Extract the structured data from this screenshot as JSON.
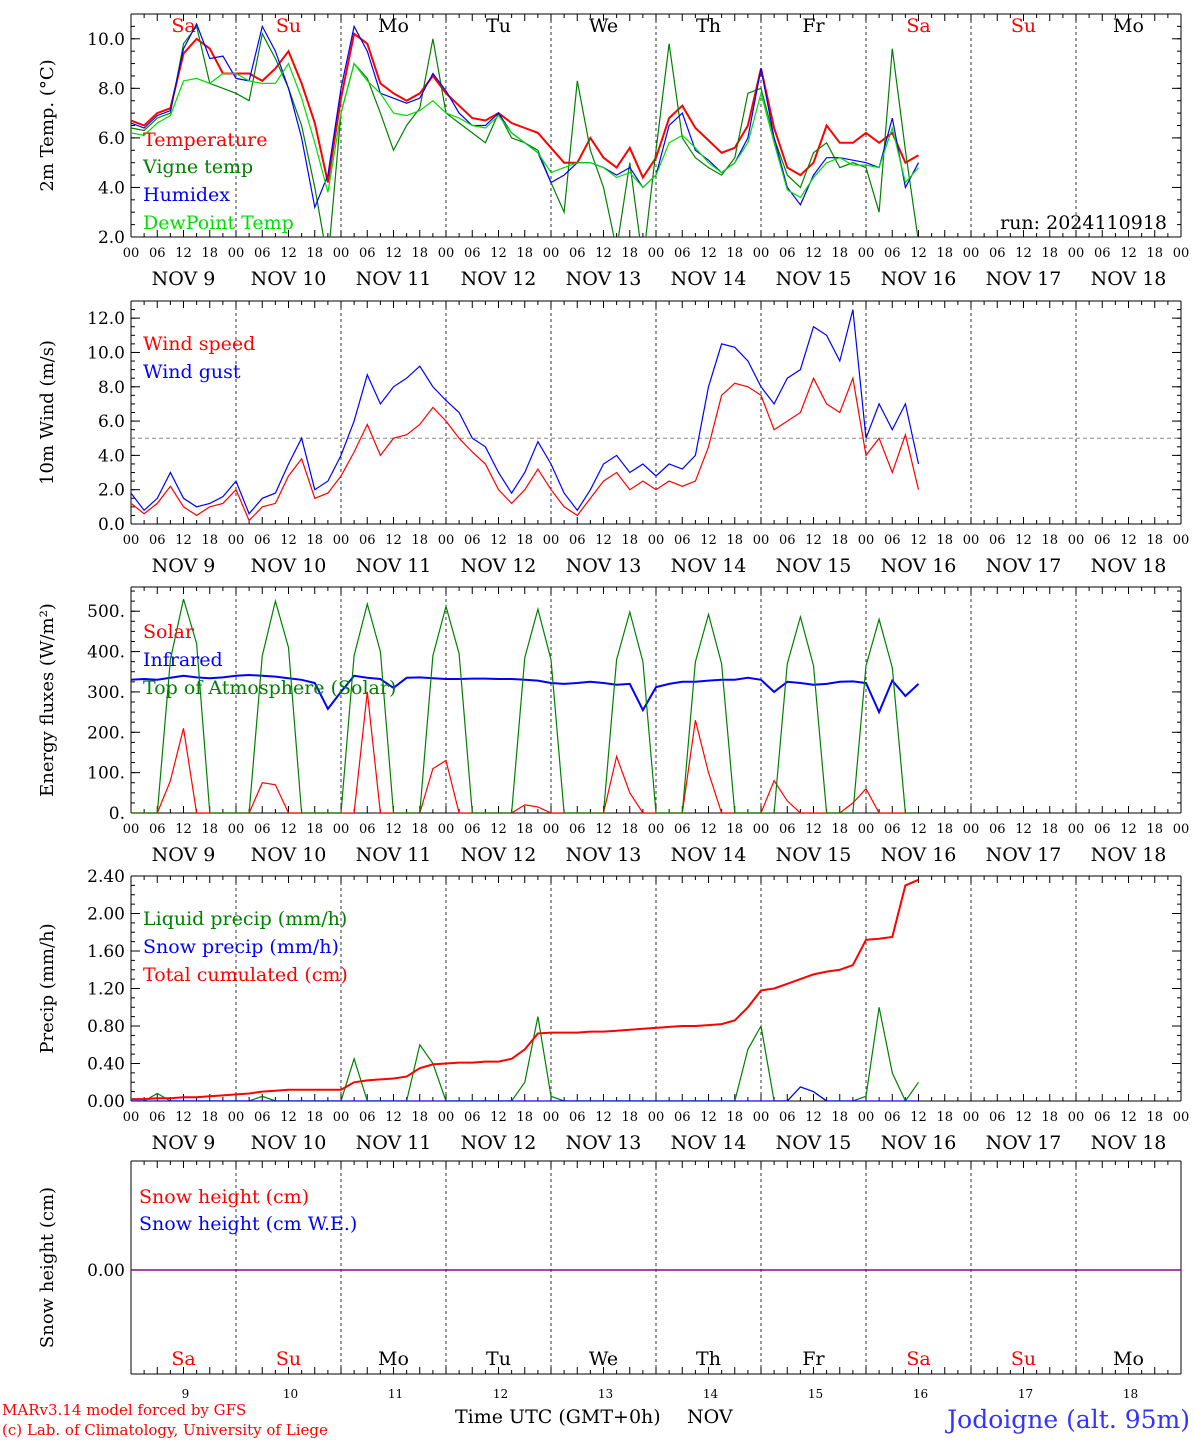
{
  "run_label": "run: 2024110918",
  "x_axis_title": "Time UTC (GMT+0h)",
  "month_label": "NOV",
  "credits": [
    "MARv3.14 model forced by GFS",
    "(c) Lab. of Climatology, University of Liege"
  ],
  "location": "Jodoigne (alt. 95m)",
  "hour_ticks": [
    "00",
    "06",
    "12",
    "18"
  ],
  "end_tick": "00",
  "day_labels": [
    "NOV  9",
    "NOV 10",
    "NOV 11",
    "NOV 12",
    "NOV 13",
    "NOV 14",
    "NOV 15",
    "NOV 16",
    "NOV 17",
    "NOV 18"
  ],
  "day_numbers": [
    "9",
    "10",
    "11",
    "12",
    "13",
    "14",
    "15",
    "16",
    "17",
    "18"
  ],
  "weekdays": [
    "Sa",
    "Su",
    "Mo",
    "Tu",
    "We",
    "Th",
    "Fr",
    "Sa",
    "Su",
    "Mo"
  ],
  "weekend_flags": [
    true,
    true,
    false,
    false,
    false,
    false,
    false,
    true,
    true,
    false
  ],
  "colors": {
    "red": "#ff0000",
    "green": "#008000",
    "blue": "#0000ff",
    "lightgreen": "#00dd00",
    "purple": "#7f007f",
    "location": "#3333ff",
    "weekday": "#000000",
    "weekend": "#ff0000"
  },
  "chart_data": [
    {
      "type": "line",
      "ylabel": "2m Temp. (°C)",
      "ylim": [
        2,
        11
      ],
      "yticks": [
        "2.0",
        "4.0",
        "6.0",
        "8.0",
        "10.0"
      ],
      "x_unit": "hours since Nov 9 00 UTC (3-hourly)",
      "x_start": 0,
      "x_step": 3,
      "series": [
        {
          "name": "Temperature",
          "color": "red",
          "values": [
            6.7,
            6.5,
            7.0,
            7.2,
            9.4,
            10.0,
            9.6,
            8.6,
            8.6,
            8.6,
            8.3,
            8.8,
            9.5,
            8.2,
            6.6,
            4.2,
            7.6,
            10.2,
            9.8,
            8.2,
            7.8,
            7.5,
            7.8,
            8.5,
            7.8,
            7.3,
            6.8,
            6.7,
            7.0,
            6.6,
            6.4,
            6.2,
            5.6,
            5.0,
            5.0,
            6.0,
            5.2,
            4.8,
            5.6,
            4.4,
            5.2,
            6.8,
            7.3,
            6.4,
            5.9,
            5.4,
            5.6,
            6.5,
            8.8,
            6.4,
            4.8,
            4.5,
            5.0,
            6.5,
            5.8,
            5.8,
            6.2,
            5.8,
            6.2,
            5.0,
            5.3
          ]
        },
        {
          "name": "Vigne temp",
          "color": "green",
          "values": [
            6.4,
            6.3,
            6.8,
            7.0,
            9.8,
            10.5,
            8.2,
            8.0,
            7.8,
            7.5,
            10.2,
            9.2,
            8.0,
            6.5,
            4.0,
            1.0,
            7.0,
            9.0,
            8.4,
            7.0,
            5.5,
            6.5,
            7.2,
            10.0,
            7.0,
            6.6,
            6.2,
            5.8,
            7.0,
            6.0,
            5.8,
            5.5,
            4.2,
            3.0,
            8.3,
            5.5,
            4.0,
            1.5,
            5.0,
            1.0,
            5.5,
            9.8,
            6.0,
            5.2,
            4.8,
            4.5,
            5.2,
            7.8,
            8.0,
            6.0,
            4.5,
            4.0,
            5.4,
            5.8,
            4.8,
            5.0,
            4.8,
            3.0,
            9.6,
            5.5,
            1.8
          ]
        },
        {
          "name": "Humidex",
          "color": "blue",
          "values": [
            6.6,
            6.4,
            6.9,
            7.1,
            9.6,
            10.6,
            9.2,
            9.3,
            8.4,
            8.3,
            10.5,
            9.5,
            8.0,
            6.0,
            3.2,
            4.5,
            8.0,
            10.5,
            9.5,
            7.8,
            7.6,
            7.4,
            7.6,
            8.6,
            7.9,
            7.0,
            6.5,
            6.5,
            7.0,
            6.2,
            5.8,
            5.4,
            4.2,
            4.5,
            5.0,
            5.0,
            4.8,
            4.5,
            4.8,
            4.0,
            4.5,
            6.5,
            7.0,
            5.5,
            5.1,
            4.6,
            5.0,
            6.0,
            8.8,
            6.0,
            4.0,
            3.3,
            4.5,
            5.2,
            5.2,
            5.1,
            5.0,
            4.8,
            6.8,
            4.0,
            5.0
          ]
        },
        {
          "name": "DewPoint Temp",
          "color": "lightgreen",
          "values": [
            6.2,
            6.1,
            6.6,
            6.9,
            8.3,
            8.4,
            8.2,
            8.6,
            8.6,
            8.3,
            8.2,
            8.2,
            9.0,
            7.6,
            5.8,
            3.8,
            7.0,
            9.0,
            8.3,
            7.8,
            7.0,
            6.9,
            7.1,
            7.5,
            7.0,
            6.8,
            6.5,
            6.4,
            6.9,
            6.2,
            5.8,
            5.4,
            4.6,
            4.8,
            5.0,
            5.0,
            4.8,
            4.4,
            4.6,
            4.0,
            4.5,
            5.8,
            6.1,
            5.6,
            5.0,
            4.6,
            5.0,
            5.8,
            7.8,
            5.8,
            3.9,
            3.6,
            4.4,
            5.0,
            5.2,
            4.9,
            4.9,
            4.8,
            6.4,
            4.2,
            4.8
          ]
        }
      ]
    },
    {
      "type": "line",
      "ylabel": "10m Wind (m/s)",
      "ylim": [
        0,
        13
      ],
      "yticks": [
        "0.0",
        "2.0",
        "4.0",
        "6.0",
        "8.0",
        "10.0",
        "12.0"
      ],
      "reference_line": 5,
      "x_unit": "hours since Nov 9 00 UTC (3-hourly)",
      "x_start": 0,
      "x_step": 3,
      "series": [
        {
          "name": "Wind speed",
          "color": "red",
          "values": [
            1.2,
            0.6,
            1.2,
            2.2,
            1.0,
            0.5,
            1.0,
            1.2,
            2.0,
            0.2,
            1.0,
            1.2,
            2.8,
            3.8,
            1.5,
            1.8,
            2.8,
            4.2,
            5.8,
            4.0,
            5.0,
            5.2,
            5.8,
            6.8,
            6.0,
            5.0,
            4.2,
            3.5,
            2.0,
            1.2,
            2.0,
            3.2,
            2.0,
            1.0,
            0.5,
            1.5,
            2.5,
            3.0,
            2.0,
            2.5,
            2.0,
            2.5,
            2.2,
            2.5,
            4.5,
            7.5,
            8.2,
            8.0,
            7.5,
            5.5,
            6.0,
            6.5,
            8.5,
            7.0,
            6.5,
            8.5,
            4.0,
            5.0,
            3.0,
            5.2,
            2.0
          ]
        },
        {
          "name": "Wind gust",
          "color": "blue",
          "values": [
            1.8,
            0.8,
            1.5,
            3.0,
            1.5,
            1.0,
            1.2,
            1.6,
            2.5,
            0.6,
            1.5,
            1.8,
            3.5,
            5.0,
            2.0,
            2.5,
            4.0,
            6.0,
            8.7,
            7.0,
            8.0,
            8.5,
            9.2,
            8.0,
            7.2,
            6.5,
            5.0,
            4.5,
            3.0,
            1.8,
            3.0,
            4.8,
            3.5,
            1.8,
            0.8,
            2.0,
            3.5,
            4.0,
            3.0,
            3.5,
            2.8,
            3.5,
            3.2,
            4.0,
            8.0,
            10.5,
            10.3,
            9.5,
            8.0,
            7.0,
            8.5,
            9.0,
            11.5,
            11.0,
            9.5,
            12.5,
            5.0,
            7.0,
            5.5,
            7.0,
            3.5
          ]
        }
      ]
    },
    {
      "type": "line",
      "ylabel": "Energy fluxes (W/m²)",
      "ylim": [
        0,
        560
      ],
      "yticks": [
        "0.",
        "100.",
        "200.",
        "300.",
        "400.",
        "500."
      ],
      "x_unit": "hours since Nov 9 00 UTC (3-hourly)",
      "x_start": 0,
      "x_step": 3,
      "series": [
        {
          "name": "Solar",
          "color": "red",
          "values": [
            0,
            0,
            0,
            80,
            210,
            0,
            0,
            0,
            0,
            0,
            75,
            70,
            0,
            0,
            0,
            0,
            0,
            0,
            300,
            0,
            0,
            0,
            0,
            110,
            130,
            0,
            0,
            0,
            0,
            0,
            20,
            15,
            0,
            0,
            0,
            0,
            0,
            140,
            50,
            0,
            0,
            0,
            0,
            230,
            100,
            0,
            0,
            0,
            0,
            80,
            30,
            0,
            0,
            0,
            0,
            25,
            60,
            0,
            0,
            0,
            0
          ]
        },
        {
          "name": "Infrared",
          "color": "blue",
          "values": [
            330,
            332,
            330,
            335,
            340,
            336,
            334,
            336,
            340,
            342,
            340,
            338,
            334,
            330,
            322,
            258,
            300,
            340,
            335,
            332,
            310,
            335,
            336,
            334,
            332,
            332,
            333,
            333,
            332,
            332,
            330,
            328,
            322,
            320,
            322,
            325,
            322,
            318,
            320,
            255,
            312,
            320,
            325,
            325,
            328,
            330,
            330,
            335,
            330,
            300,
            325,
            322,
            318,
            320,
            325,
            326,
            322,
            250,
            328,
            290,
            320
          ]
        },
        {
          "name": "Top of Atmosphere (Solar)",
          "color": "green",
          "values": [
            0,
            0,
            0,
            380,
            530,
            420,
            0,
            0,
            0,
            0,
            390,
            525,
            410,
            0,
            0,
            0,
            0,
            390,
            518,
            400,
            0,
            0,
            0,
            390,
            512,
            395,
            0,
            0,
            0,
            0,
            385,
            505,
            380,
            0,
            0,
            0,
            0,
            380,
            498,
            375,
            0,
            0,
            0,
            375,
            492,
            370,
            0,
            0,
            0,
            0,
            370,
            486,
            365,
            0,
            0,
            0,
            365,
            480,
            360,
            0,
            0
          ]
        }
      ]
    },
    {
      "type": "line",
      "ylabel": "Precip (mm/h)",
      "ylim": [
        0,
        2.4
      ],
      "yticks": [
        "0.00",
        "0.40",
        "0.80",
        "1.20",
        "1.60",
        "2.00",
        "2.40"
      ],
      "x_unit": "hours since Nov 9 00 UTC (3-hourly)",
      "x_start": 0,
      "x_step": 3,
      "series": [
        {
          "name": "Liquid precip (mm/h)",
          "color": "green",
          "values": [
            0,
            0,
            0.08,
            0,
            0,
            0,
            0,
            0,
            0,
            0,
            0.05,
            0,
            0,
            0,
            0,
            0,
            0,
            0.45,
            0,
            0,
            0,
            0,
            0.6,
            0.4,
            0,
            0,
            0,
            0,
            0,
            0,
            0.2,
            0.9,
            0.05,
            0,
            0,
            0,
            0,
            0,
            0,
            0,
            0,
            0,
            0,
            0,
            0,
            0,
            0,
            0.55,
            0.8,
            0,
            0,
            0.15,
            0.1,
            0,
            0,
            0,
            0.05,
            1.0,
            0.3,
            0,
            0.2
          ]
        },
        {
          "name": "Snow precip (mm/h)",
          "color": "blue",
          "values": [
            0,
            0,
            0,
            0,
            0,
            0,
            0,
            0,
            0,
            0,
            0,
            0,
            0,
            0,
            0,
            0,
            0,
            0,
            0,
            0,
            0,
            0,
            0,
            0,
            0,
            0,
            0,
            0,
            0,
            0,
            0,
            0,
            0,
            0,
            0,
            0,
            0,
            0,
            0,
            0,
            0,
            0,
            0,
            0,
            0,
            0,
            0,
            0,
            0,
            0,
            0,
            0.15,
            0.1,
            0,
            0,
            0,
            0,
            0,
            0,
            0,
            0
          ]
        },
        {
          "name": "Total cumulated (cm)",
          "color": "red",
          "values": [
            0.02,
            0.02,
            0.03,
            0.03,
            0.04,
            0.04,
            0.05,
            0.06,
            0.07,
            0.08,
            0.1,
            0.11,
            0.12,
            0.12,
            0.12,
            0.12,
            0.12,
            0.2,
            0.22,
            0.23,
            0.24,
            0.26,
            0.35,
            0.39,
            0.4,
            0.41,
            0.41,
            0.42,
            0.42,
            0.45,
            0.55,
            0.72,
            0.73,
            0.73,
            0.73,
            0.74,
            0.74,
            0.75,
            0.76,
            0.77,
            0.78,
            0.79,
            0.8,
            0.8,
            0.81,
            0.82,
            0.86,
            1.0,
            1.18,
            1.2,
            1.25,
            1.3,
            1.35,
            1.38,
            1.4,
            1.45,
            1.72,
            1.73,
            1.75,
            2.3,
            2.36
          ]
        }
      ]
    },
    {
      "type": "line",
      "ylabel": "Snow height (cm)",
      "yticks": [
        "0.00"
      ],
      "x_unit": "hours since Nov 9 00 UTC (3-hourly)",
      "x_start": 0,
      "x_step": 3,
      "series": [
        {
          "name": "Snow height (cm)",
          "color": "red",
          "values": [
            0,
            0
          ]
        },
        {
          "name": "Snow height (cm W.E.)",
          "color": "blue",
          "values": [
            0,
            0
          ]
        }
      ]
    }
  ]
}
